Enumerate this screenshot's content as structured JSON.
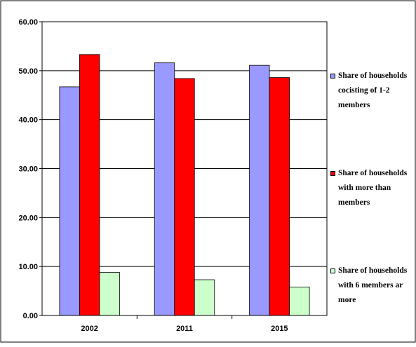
{
  "chart_data": {
    "type": "bar",
    "title": "",
    "xlabel": "",
    "ylabel": "",
    "categories": [
      "2002",
      "2011",
      "2015"
    ],
    "ylim": [
      0,
      60
    ],
    "yticks": [
      "0.00",
      "10.00",
      "20.00",
      "30.00",
      "40.00",
      "50.00",
      "60.00"
    ],
    "grid": true,
    "legend_position": "right",
    "series": [
      {
        "name": "Share of households cocisting of 1-2 members",
        "legend_lines": [
          "Share of households",
          "cocisting of 1-2",
          "members"
        ],
        "color": "#9999ff",
        "values": [
          46.7,
          51.6,
          51.1
        ]
      },
      {
        "name": "Share of households with more than members",
        "legend_lines": [
          "Share of households",
          "with more than",
          "members"
        ],
        "color": "#ff0000",
        "values": [
          53.3,
          48.4,
          48.6
        ]
      },
      {
        "name": "Share of households with 6 members ar more",
        "legend_lines": [
          "Share of households",
          "with 6 members ar",
          "more"
        ],
        "color": "#ccffcc",
        "values": [
          8.8,
          7.3,
          5.8
        ]
      }
    ]
  }
}
